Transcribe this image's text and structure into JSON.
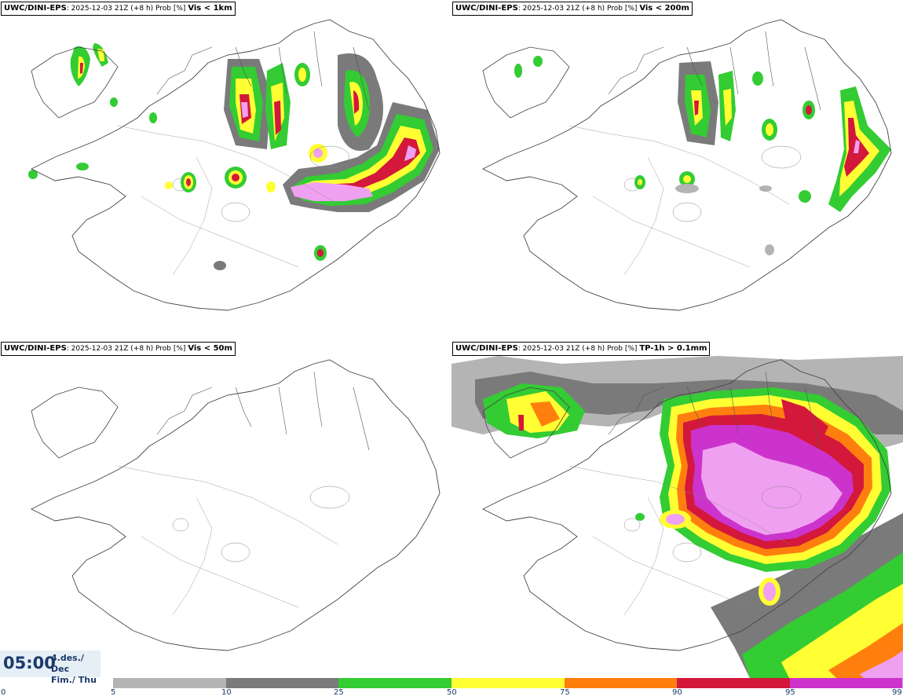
{
  "panels": [
    {
      "model": "UWC/DINI-EPS",
      "meta": ": 2025-12-03 21Z (+8 h) Prob [%] ",
      "variable": "Vis < 1km"
    },
    {
      "model": "UWC/DINI-EPS",
      "meta": ": 2025-12-03 21Z (+8 h) Prob [%] ",
      "variable": "Vis < 200m"
    },
    {
      "model": "UWC/DINI-EPS",
      "meta": ": 2025-12-03 21Z (+8 h) Prob [%] ",
      "variable": "Vis < 50m"
    },
    {
      "model": "UWC/DINI-EPS",
      "meta": ": 2025-12-03 21Z (+8 h) Prob [%] ",
      "variable": "TP-1h > 0.1mm"
    }
  ],
  "time": {
    "clock": "05:00",
    "date_line1": "4.des./ Dec",
    "date_line2": "Fim./ Thu"
  },
  "colorbar": {
    "ticks": [
      "0",
      "5",
      "10",
      "25",
      "50",
      "75",
      "90",
      "95",
      "99"
    ],
    "colors": [
      "#b4b4b4",
      "#7a7a7a",
      "#33cc33",
      "#ffff33",
      "#ff7f0e",
      "#d3183c",
      "#cc33cc",
      "#f0a0f0"
    ]
  }
}
